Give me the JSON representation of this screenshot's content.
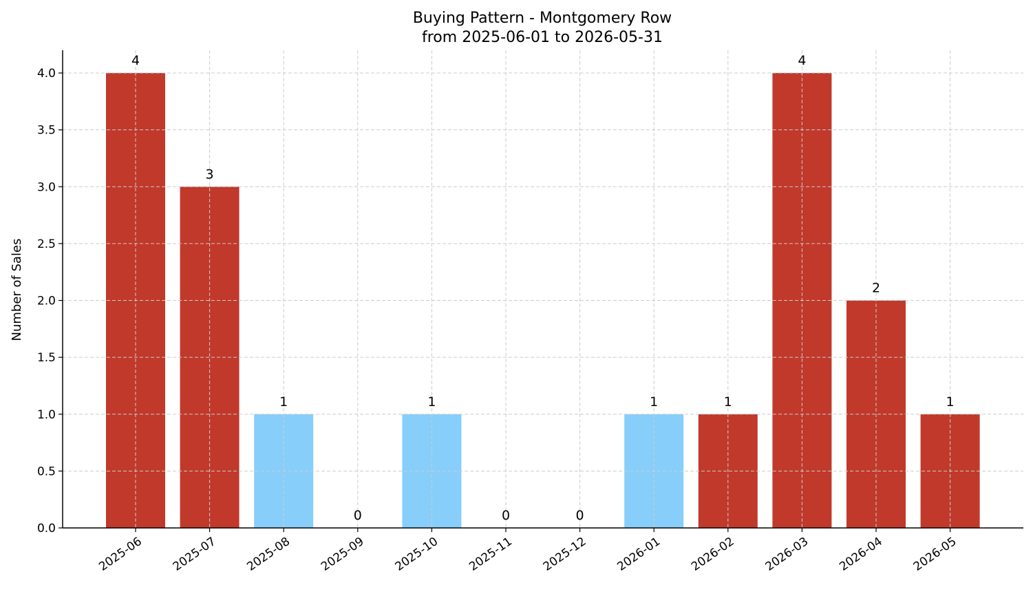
{
  "chart_data": {
    "type": "bar",
    "title": "Buying Pattern - Montgomery Row",
    "subtitle": "from 2025-06-01 to 2026-05-31",
    "xlabel": "",
    "ylabel": "Number of Sales",
    "ylim": [
      0,
      4.2
    ],
    "yticks": [
      "0.0",
      "0.5",
      "1.0",
      "1.5",
      "2.0",
      "2.5",
      "3.0",
      "3.5",
      "4.0"
    ],
    "grid": true,
    "categories": [
      "2025-06",
      "2025-07",
      "2025-08",
      "2025-09",
      "2025-10",
      "2025-11",
      "2025-12",
      "2026-01",
      "2026-02",
      "2026-03",
      "2026-04",
      "2026-05"
    ],
    "values": [
      4,
      3,
      1,
      0,
      1,
      0,
      0,
      1,
      1,
      4,
      2,
      1
    ],
    "data_labels": [
      "4",
      "3",
      "1",
      "0",
      "1",
      "0",
      "0",
      "1",
      "1",
      "4",
      "2",
      "1"
    ],
    "bar_colors": [
      "#c0392b",
      "#c0392b",
      "#87cefa",
      "#87cefa",
      "#87cefa",
      "#87cefa",
      "#87cefa",
      "#87cefa",
      "#c0392b",
      "#c0392b",
      "#c0392b",
      "#c0392b"
    ]
  }
}
